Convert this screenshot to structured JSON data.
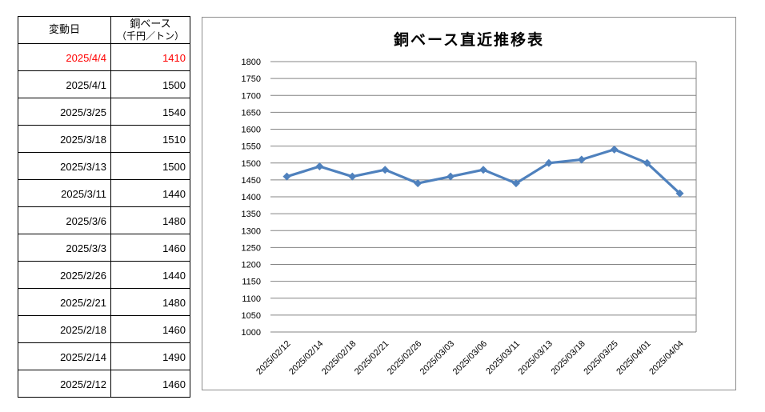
{
  "table": {
    "col1_header": "変動日",
    "col2_header_line1": "銅ベース",
    "col2_header_line2": "（千円／トン）",
    "highlight_color": "#ff0000",
    "rows": [
      {
        "date": "2025/4/4",
        "value": "1410",
        "highlight": true
      },
      {
        "date": "2025/4/1",
        "value": "1500",
        "highlight": false
      },
      {
        "date": "2025/3/25",
        "value": "1540",
        "highlight": false
      },
      {
        "date": "2025/3/18",
        "value": "1510",
        "highlight": false
      },
      {
        "date": "2025/3/13",
        "value": "1500",
        "highlight": false
      },
      {
        "date": "2025/3/11",
        "value": "1440",
        "highlight": false
      },
      {
        "date": "2025/3/6",
        "value": "1480",
        "highlight": false
      },
      {
        "date": "2025/3/3",
        "value": "1460",
        "highlight": false
      },
      {
        "date": "2025/2/26",
        "value": "1440",
        "highlight": false
      },
      {
        "date": "2025/2/21",
        "value": "1480",
        "highlight": false
      },
      {
        "date": "2025/2/18",
        "value": "1460",
        "highlight": false
      },
      {
        "date": "2025/2/14",
        "value": "1490",
        "highlight": false
      },
      {
        "date": "2025/2/12",
        "value": "1460",
        "highlight": false
      }
    ]
  },
  "chart_data": {
    "type": "line",
    "title": "銅ベース直近推移表",
    "x": [
      "2025/02/12",
      "2025/02/14",
      "2025/02/18",
      "2025/02/21",
      "2025/02/26",
      "2025/03/03",
      "2025/03/06",
      "2025/03/11",
      "2025/03/13",
      "2025/03/18",
      "2025/03/25",
      "2025/04/01",
      "2025/04/04"
    ],
    "series": [
      {
        "values": [
          1460,
          1490,
          1460,
          1480,
          1440,
          1460,
          1480,
          1440,
          1500,
          1510,
          1540,
          1500,
          1410
        ]
      }
    ],
    "ylim": [
      1000,
      1800
    ],
    "ytick_step": 50,
    "xtick_rotation": 45,
    "grid": true,
    "legend": "none",
    "line_color": "#4F81BD",
    "marker": "diamond",
    "grid_color": "#848484",
    "axis_text_color": "#000000"
  }
}
